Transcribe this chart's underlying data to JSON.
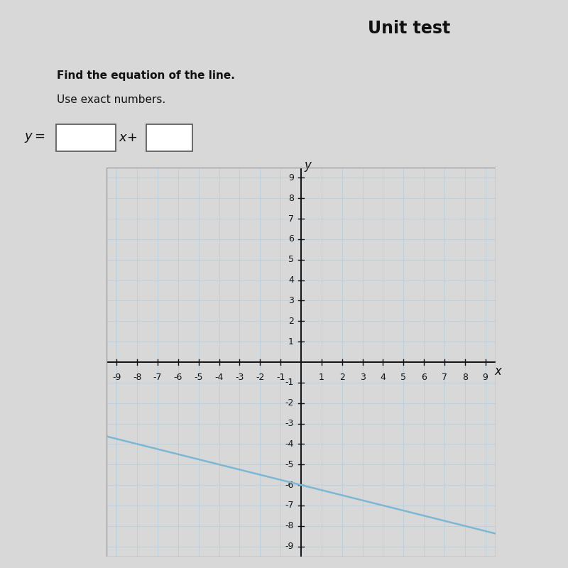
{
  "title": "Unit test",
  "instruction_line1": "Find the equation of the line.",
  "instruction_line2": "Use exact numbers.",
  "equation_label": "y =",
  "slope": -0.25,
  "intercept": -6,
  "x_range": [
    -9,
    9
  ],
  "y_range": [
    -9,
    9
  ],
  "line_color": "#7ab8d4",
  "line_width": 1.8,
  "grid_color": "#b8cfe0",
  "axis_color": "#111111",
  "background_color": "#d8d8d8",
  "plot_bg_color": "#eef5ee",
  "title_bg_color": "#cccccc",
  "tick_label_fontsize": 9,
  "axis_label_fontsize": 12,
  "title_fontsize": 17,
  "instr_fontsize": 11,
  "eq_fontsize": 13
}
